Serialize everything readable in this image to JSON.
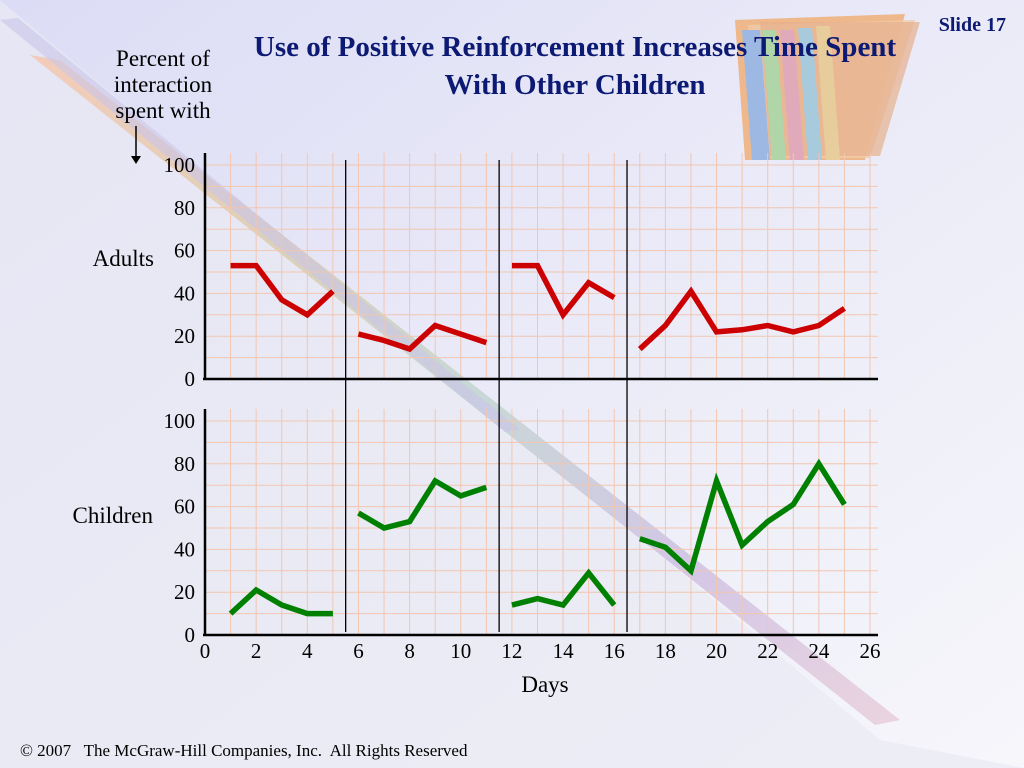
{
  "slide": {
    "title": "Use of Positive Reinforcement Increases Time Spent With Other Children",
    "number_label": "Slide 17",
    "y_axis_label": "Percent of interaction spent with",
    "footer": "© 2007   The McGraw-Hill Companies, Inc.  All Rights Reserved"
  },
  "chart_data": {
    "type": "line",
    "xlabel": "Days",
    "xlim": [
      0,
      26
    ],
    "ylim": [
      0,
      100
    ],
    "x_ticks": [
      0,
      2,
      4,
      6,
      8,
      10,
      12,
      14,
      16,
      18,
      20,
      22,
      24,
      26
    ],
    "y_ticks": [
      0,
      20,
      40,
      60,
      80,
      100
    ],
    "grid": true,
    "phase_changes": [
      5.5,
      11.5,
      16.5
    ],
    "panels": [
      {
        "name": "Adults",
        "color": "#cc0000",
        "segments": [
          {
            "x": [
              1,
              2,
              3,
              4,
              5
            ],
            "y": [
              53,
              53,
              37,
              30,
              41
            ]
          },
          {
            "x": [
              6,
              7,
              8,
              9,
              10,
              11
            ],
            "y": [
              21,
              18,
              14,
              25,
              21,
              17
            ]
          },
          {
            "x": [
              12,
              13,
              14,
              15,
              16
            ],
            "y": [
              53,
              53,
              30,
              45,
              38
            ]
          },
          {
            "x": [
              17,
              18,
              19,
              20,
              21,
              22,
              23,
              24,
              25
            ],
            "y": [
              14,
              25,
              41,
              22,
              23,
              25,
              22,
              25,
              33
            ]
          }
        ]
      },
      {
        "name": "Children",
        "color": "#008000",
        "segments": [
          {
            "x": [
              1,
              2,
              3,
              4,
              5
            ],
            "y": [
              10,
              21,
              14,
              10,
              10
            ]
          },
          {
            "x": [
              6,
              7,
              8,
              9,
              10,
              11
            ],
            "y": [
              57,
              50,
              53,
              72,
              65,
              69
            ]
          },
          {
            "x": [
              12,
              13,
              14,
              15,
              16
            ],
            "y": [
              14,
              17,
              14,
              29,
              14
            ]
          },
          {
            "x": [
              17,
              18,
              19,
              20,
              21,
              22,
              23,
              24,
              25
            ],
            "y": [
              45,
              41,
              30,
              72,
              42,
              53,
              61,
              80,
              61
            ]
          }
        ]
      }
    ]
  }
}
